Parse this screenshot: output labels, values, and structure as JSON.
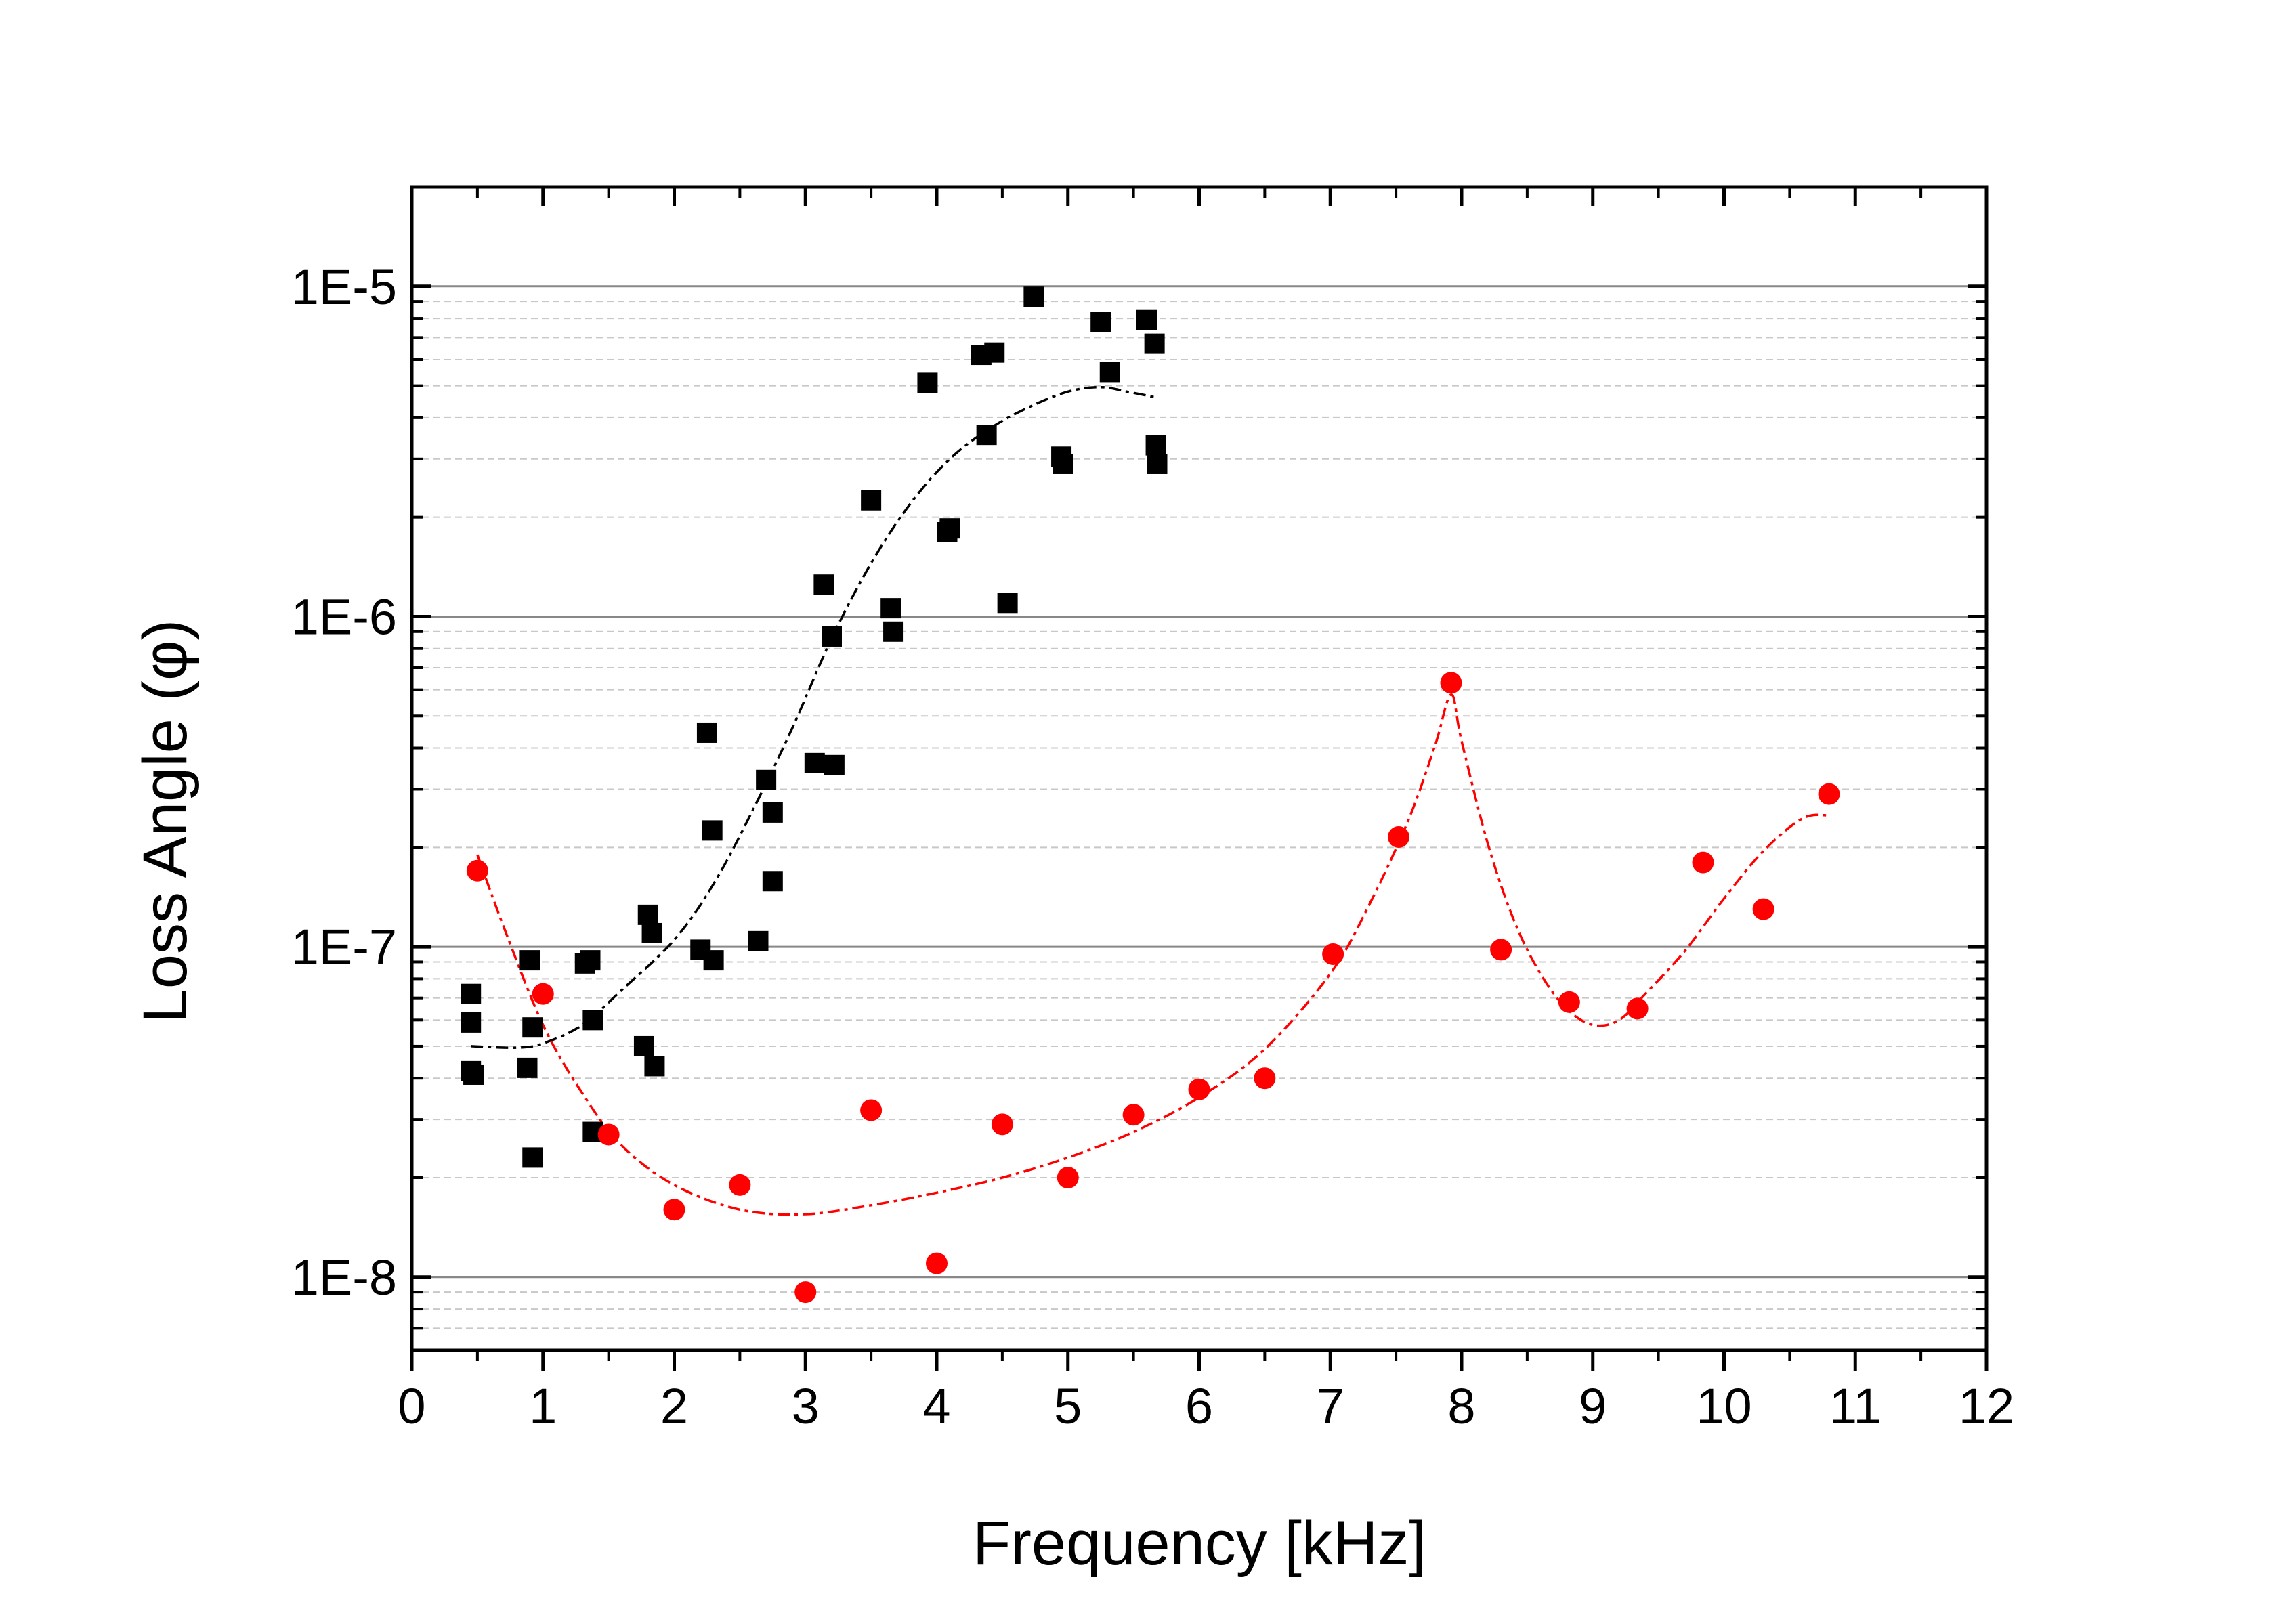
{
  "chart_data": {
    "type": "scatter",
    "title": "",
    "xlabel": "Frequency [kHz]",
    "ylabel": "Loss Angle (φ)",
    "xlim": [
      0,
      12
    ],
    "ylim": [
      6e-09,
      2e-05
    ],
    "yscale": "log",
    "grid": "horizontal major and minor",
    "x_ticks": [
      "0",
      "1",
      "2",
      "3",
      "4",
      "5",
      "6",
      "7",
      "8",
      "9",
      "10",
      "11",
      "12"
    ],
    "y_ticks": [
      {
        "value": 1e-08,
        "label": "1E-8"
      },
      {
        "value": 1e-07,
        "label": "1E-7"
      },
      {
        "value": 1e-06,
        "label": "1E-6"
      },
      {
        "value": 1e-05,
        "label": "1E-5"
      }
    ],
    "series": [
      {
        "name": "black squares",
        "marker": "square",
        "color": "#000000",
        "points": [
          [
            0.45,
            7.2e-08
          ],
          [
            0.45,
            5.9e-08
          ],
          [
            0.45,
            4.2e-08
          ],
          [
            0.47,
            4.1e-08
          ],
          [
            0.88,
            4.3e-08
          ],
          [
            0.9,
            9.1e-08
          ],
          [
            0.92,
            5.7e-08
          ],
          [
            0.92,
            2.3e-08
          ],
          [
            1.32,
            8.9e-08
          ],
          [
            1.36,
            9.1e-08
          ],
          [
            1.38,
            6e-08
          ],
          [
            1.38,
            2.75e-08
          ],
          [
            1.77,
            5e-08
          ],
          [
            1.8,
            1.25e-07
          ],
          [
            1.83,
            1.1e-07
          ],
          [
            1.85,
            4.35e-08
          ],
          [
            2.2,
            9.8e-08
          ],
          [
            2.25,
            4.45e-07
          ],
          [
            2.29,
            2.25e-07
          ],
          [
            2.3,
            9.1e-08
          ],
          [
            2.64,
            1.04e-07
          ],
          [
            2.7,
            3.2e-07
          ],
          [
            2.75,
            2.55e-07
          ],
          [
            2.75,
            1.58e-07
          ],
          [
            3.07,
            3.6e-07
          ],
          [
            3.14,
            1.25e-06
          ],
          [
            3.2,
            8.7e-07
          ],
          [
            3.22,
            3.55e-07
          ],
          [
            3.5,
            2.25e-06
          ],
          [
            3.65,
            1.06e-06
          ],
          [
            3.67,
            9e-07
          ],
          [
            3.93,
            5.1e-06
          ],
          [
            4.08,
            1.8e-06
          ],
          [
            4.1,
            1.85e-06
          ],
          [
            4.34,
            6.2e-06
          ],
          [
            4.38,
            3.55e-06
          ],
          [
            4.44,
            6.3e-06
          ],
          [
            4.54,
            1.1e-06
          ],
          [
            4.74,
            9.3e-06
          ],
          [
            4.95,
            3.05e-06
          ],
          [
            4.96,
            2.9e-06
          ],
          [
            5.25,
            7.8e-06
          ],
          [
            5.32,
            5.5e-06
          ],
          [
            5.6,
            7.9e-06
          ],
          [
            5.66,
            6.7e-06
          ],
          [
            5.67,
            3.3e-06
          ],
          [
            5.68,
            2.9e-06
          ]
        ],
        "fit": [
          [
            0.45,
            5e-08
          ],
          [
            0.8,
            4.95e-08
          ],
          [
            1.0,
            5.1e-08
          ],
          [
            1.3,
            5.8e-08
          ],
          [
            1.6,
            7.4e-08
          ],
          [
            2.0,
            1.05e-07
          ],
          [
            2.3,
            1.55e-07
          ],
          [
            2.6,
            2.6e-07
          ],
          [
            2.9,
            4.6e-07
          ],
          [
            3.2,
            8.6e-07
          ],
          [
            3.5,
            1.45e-06
          ],
          [
            3.8,
            2.2e-06
          ],
          [
            4.1,
            3e-06
          ],
          [
            4.4,
            3.7e-06
          ],
          [
            4.7,
            4.3e-06
          ],
          [
            5.0,
            4.8e-06
          ],
          [
            5.25,
            4.95e-06
          ],
          [
            5.45,
            4.8e-06
          ],
          [
            5.68,
            4.6e-06
          ]
        ]
      },
      {
        "name": "red circles",
        "marker": "circle",
        "color": "#ff0000",
        "points": [
          [
            0.5,
            1.7e-07
          ],
          [
            1.0,
            7.2e-08
          ],
          [
            1.5,
            2.7e-08
          ],
          [
            2.0,
            1.6e-08
          ],
          [
            2.5,
            1.9e-08
          ],
          [
            3.0,
            9e-09
          ],
          [
            3.5,
            3.2e-08
          ],
          [
            4.0,
            1.1e-08
          ],
          [
            4.5,
            2.9e-08
          ],
          [
            5.0,
            2e-08
          ],
          [
            5.5,
            3.1e-08
          ],
          [
            6.0,
            3.7e-08
          ],
          [
            6.5,
            4e-08
          ],
          [
            7.02,
            9.5e-08
          ],
          [
            7.52,
            2.15e-07
          ],
          [
            7.92,
            6.3e-07
          ],
          [
            8.3,
            9.8e-08
          ],
          [
            8.82,
            6.8e-08
          ],
          [
            9.34,
            6.5e-08
          ],
          [
            9.84,
            1.8e-07
          ],
          [
            10.3,
            1.3e-07
          ],
          [
            10.8,
            2.9e-07
          ]
        ],
        "fit": [
          [
            0.5,
            1.9e-07
          ],
          [
            0.7,
            1.15e-07
          ],
          [
            1.0,
            5.8e-08
          ],
          [
            1.3,
            3.6e-08
          ],
          [
            1.6,
            2.5e-08
          ],
          [
            2.0,
            1.9e-08
          ],
          [
            2.5,
            1.6e-08
          ],
          [
            3.0,
            1.55e-08
          ],
          [
            3.5,
            1.65e-08
          ],
          [
            4.0,
            1.8e-08
          ],
          [
            4.5,
            2e-08
          ],
          [
            5.0,
            2.3e-08
          ],
          [
            5.5,
            2.75e-08
          ],
          [
            6.0,
            3.5e-08
          ],
          [
            6.5,
            4.9e-08
          ],
          [
            7.0,
            8.3e-08
          ],
          [
            7.3,
            1.35e-07
          ],
          [
            7.6,
            2.45e-07
          ],
          [
            7.8,
            4.1e-07
          ],
          [
            7.92,
            5.8e-07
          ],
          [
            8.0,
            4.2e-07
          ],
          [
            8.2,
            2.05e-07
          ],
          [
            8.4,
            1.2e-07
          ],
          [
            8.6,
            8.3e-08
          ],
          [
            8.8,
            6.5e-08
          ],
          [
            9.0,
            5.8e-08
          ],
          [
            9.2,
            6e-08
          ],
          [
            9.4,
            7.2e-08
          ],
          [
            9.7,
            9.7e-08
          ],
          [
            10.0,
            1.4e-07
          ],
          [
            10.3,
            1.95e-07
          ],
          [
            10.6,
            2.45e-07
          ],
          [
            10.8,
            2.5e-07
          ]
        ]
      }
    ]
  }
}
